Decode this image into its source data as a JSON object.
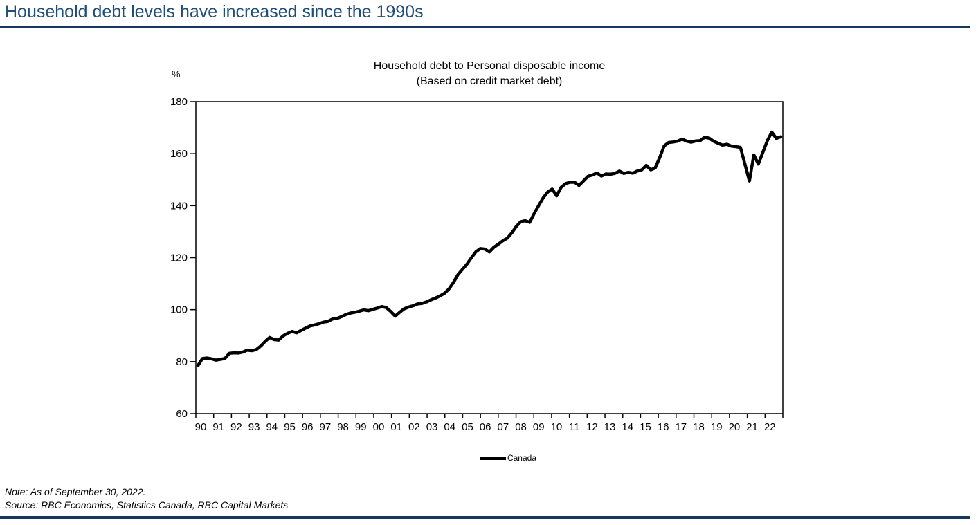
{
  "page": {
    "title": "Household debt levels have increased since the 1990s",
    "note": "Note: As of September 30, 2022.",
    "source": "Source: RBC Economics, Statistics Canada, RBC Capital Markets",
    "title_color": "#1F4E79",
    "divider_color": "#17375E"
  },
  "chart_data": {
    "type": "line",
    "title": "Household debt to Personal disposable income",
    "subtitle": "(Based on credit market debt)",
    "unit_label": "%",
    "ylabel": "%",
    "xlabel": "",
    "ylim": [
      60,
      180
    ],
    "yticks": [
      180,
      160,
      140,
      120,
      100,
      80,
      60
    ],
    "xtick_labels": [
      "90",
      "91",
      "92",
      "93",
      "94",
      "95",
      "96",
      "97",
      "98",
      "99",
      "00",
      "01",
      "02",
      "03",
      "04",
      "05",
      "06",
      "07",
      "08",
      "09",
      "10",
      "11",
      "12",
      "13",
      "14",
      "15",
      "16",
      "17",
      "18",
      "19",
      "20",
      "21",
      "22"
    ],
    "x_start": "1990Q1",
    "x_end": "2022Q3",
    "frequency": "quarterly",
    "grid": false,
    "legend_position": "bottom-center",
    "line_color": "#000000",
    "series": [
      {
        "name": "Canada",
        "color": "#000000",
        "values": [
          78.5,
          81.2,
          81.4,
          81.1,
          80.6,
          80.9,
          81.2,
          83.2,
          83.4,
          83.3,
          83.7,
          84.4,
          84.2,
          84.6,
          86.0,
          87.8,
          89.3,
          88.5,
          88.3,
          89.9,
          90.9,
          91.6,
          91.1,
          92.0,
          92.9,
          93.7,
          94.1,
          94.6,
          95.2,
          95.5,
          96.4,
          96.6,
          97.3,
          98.1,
          98.7,
          99.0,
          99.4,
          99.9,
          99.6,
          100.1,
          100.6,
          101.2,
          100.8,
          99.3,
          97.5,
          99.0,
          100.3,
          101.0,
          101.5,
          102.2,
          102.4,
          103.0,
          103.8,
          104.5,
          105.3,
          106.3,
          108.0,
          110.5,
          113.5,
          115.5,
          117.5,
          120.0,
          122.3,
          123.5,
          123.3,
          122.2,
          124.0,
          125.2,
          126.5,
          127.5,
          129.5,
          132.0,
          133.8,
          134.2,
          133.6,
          137.0,
          140.0,
          143.0,
          145.2,
          146.4,
          143.8,
          147.0,
          148.5,
          149.0,
          149.0,
          147.8,
          149.5,
          151.3,
          151.8,
          152.6,
          151.4,
          152.2,
          152.1,
          152.4,
          153.3,
          152.4,
          152.8,
          152.5,
          153.3,
          153.8,
          155.5,
          153.8,
          154.5,
          158.5,
          163.0,
          164.3,
          164.5,
          164.8,
          165.6,
          164.8,
          164.4,
          164.9,
          165.0,
          166.3,
          166.0,
          164.8,
          164.0,
          163.3,
          163.6,
          162.9,
          162.7,
          162.4,
          156.0,
          149.5,
          159.5,
          156.0,
          160.5,
          165.0,
          168.3,
          165.9,
          166.5
        ]
      }
    ]
  }
}
